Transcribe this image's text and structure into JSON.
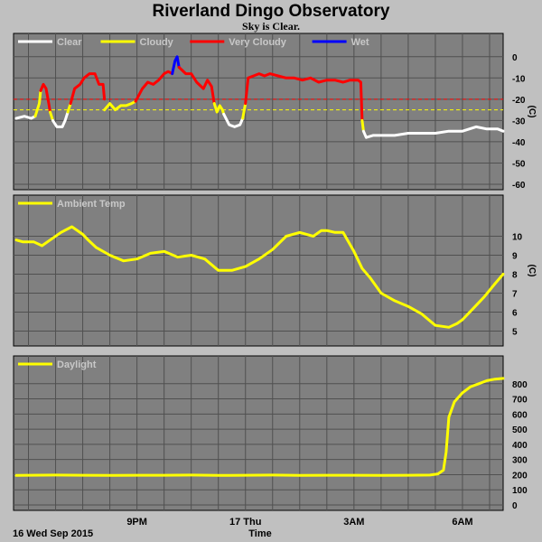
{
  "title": "Riverland Dingo Observatory",
  "subtitle": "Sky is Clear.",
  "chart_data": [
    {
      "type": "line",
      "ylabel": "(C)",
      "ylim": [
        -60,
        5
      ],
      "yticks": [
        0,
        -10,
        -20,
        -30,
        -40,
        -50,
        -60
      ],
      "legend": [
        {
          "name": "Clear",
          "color": "#ffffff"
        },
        {
          "name": "Cloudy",
          "color": "#ffff00"
        },
        {
          "name": "Very Cloudy",
          "color": "#ff0000"
        },
        {
          "name": "Wet",
          "color": "#0000ff"
        }
      ],
      "thresholds": [
        {
          "value": -20,
          "color": "#ff0000"
        },
        {
          "value": -25,
          "color": "#ffff00"
        }
      ],
      "segments": [
        {
          "series": "Clear",
          "x": [
            -4.45,
            -4.15,
            -3.9,
            -3.75
          ],
          "y": [
            -29,
            -28,
            -29,
            -28
          ]
        },
        {
          "series": "Cloudy",
          "x": [
            -3.75,
            -3.6,
            -3.55
          ],
          "y": [
            -28,
            -22,
            -16
          ]
        },
        {
          "series": "Very Cloudy",
          "x": [
            -3.55,
            -3.45,
            -3.35,
            -3.25,
            -3.2
          ],
          "y": [
            -16,
            -13,
            -15,
            -22,
            -26
          ]
        },
        {
          "series": "Cloudy",
          "x": [
            -3.2,
            -3.1
          ],
          "y": [
            -26,
            -30
          ]
        },
        {
          "series": "Clear",
          "x": [
            -3.1,
            -2.95,
            -2.75,
            -2.65,
            -2.55
          ],
          "y": [
            -30,
            -33,
            -33,
            -30,
            -26
          ]
        },
        {
          "series": "Cloudy",
          "x": [
            -2.55,
            -2.45
          ],
          "y": [
            -26,
            -22
          ]
        },
        {
          "series": "Very Cloudy",
          "x": [
            -2.45,
            -2.3,
            -2.1,
            -1.95,
            -1.75,
            -1.55,
            -1.4,
            -1.25,
            -1.2
          ],
          "y": [
            -22,
            -15,
            -13,
            -10,
            -8,
            -8,
            -13,
            -13,
            -20
          ]
        },
        {
          "series": "Cloudy",
          "x": [
            -1.2,
            -1.0,
            -0.8,
            -0.6,
            -0.4,
            -0.2,
            -0.05
          ],
          "y": [
            -25,
            -22,
            -25,
            -23,
            -23,
            -22,
            -21
          ]
        },
        {
          "series": "Very Cloudy",
          "x": [
            -0.05,
            0.2,
            0.4,
            0.6,
            0.8,
            1.0,
            1.15,
            1.3
          ],
          "y": [
            -21,
            -15,
            -12,
            -13,
            -11,
            -8,
            -7,
            -8
          ]
        },
        {
          "series": "Wet",
          "x": [
            1.3,
            1.4,
            1.48,
            1.55
          ],
          "y": [
            -8,
            -2,
            0,
            -5
          ]
        },
        {
          "series": "Very Cloudy",
          "x": [
            1.55,
            1.8,
            2.0,
            2.2,
            2.45,
            2.6,
            2.75,
            2.85
          ],
          "y": [
            -5,
            -8,
            -8,
            -12,
            -15,
            -11,
            -14,
            -22
          ]
        },
        {
          "series": "Cloudy",
          "x": [
            2.85,
            2.95,
            3.05,
            3.15,
            3.2
          ],
          "y": [
            -22,
            -26,
            -23,
            -25,
            -27
          ]
        },
        {
          "series": "Clear",
          "x": [
            3.2,
            3.4,
            3.6,
            3.8,
            3.9
          ],
          "y": [
            -27,
            -32,
            -33,
            -32,
            -29
          ]
        },
        {
          "series": "Cloudy",
          "x": [
            3.9,
            4.0
          ],
          "y": [
            -29,
            -22
          ]
        },
        {
          "series": "Very Cloudy",
          "x": [
            4.0,
            4.1,
            4.3,
            4.5,
            4.7,
            4.9,
            5.2,
            5.5,
            5.8,
            6.1,
            6.4,
            6.7,
            7.0,
            7.3,
            7.6,
            7.85,
            8.05,
            8.15,
            8.25,
            8.3
          ],
          "y": [
            -22,
            -10,
            -9,
            -8,
            -9,
            -8,
            -9,
            -10,
            -10,
            -11,
            -10,
            -12,
            -11,
            -11,
            -12,
            -11,
            -11,
            -11,
            -12,
            -30
          ]
        },
        {
          "series": "Cloudy",
          "x": [
            8.3,
            8.35
          ],
          "y": [
            -30,
            -35
          ]
        },
        {
          "series": "Clear",
          "x": [
            8.35,
            8.45,
            8.7,
            9.0,
            9.5,
            10.0,
            10.5,
            11.0,
            11.5,
            12.0,
            12.5,
            12.9,
            13.3,
            13.5
          ],
          "y": [
            -35,
            -38,
            -37,
            -37,
            -37,
            -36,
            -36,
            -36,
            -35,
            -35,
            -33,
            -34,
            -34,
            -35
          ]
        }
      ]
    },
    {
      "type": "line",
      "ylabel": "(C)",
      "ylim": [
        4.5,
        11.5
      ],
      "yticks": [
        10,
        9,
        8,
        7,
        6,
        5
      ],
      "series": [
        {
          "name": "Ambient Temp",
          "color": "#ffff00",
          "x": [
            -4.45,
            -4.2,
            -3.8,
            -3.5,
            -3.2,
            -2.8,
            -2.4,
            -2.0,
            -1.8,
            -1.5,
            -1.0,
            -0.5,
            0.0,
            0.5,
            1.0,
            1.5,
            2.0,
            2.5,
            3.0,
            3.5,
            4.0,
            4.5,
            5.0,
            5.5,
            6.0,
            6.5,
            6.8,
            7.0,
            7.3,
            7.6,
            8.0,
            8.3,
            8.6,
            9.0,
            9.5,
            10.0,
            10.5,
            11.0,
            11.5,
            11.8,
            12.0,
            12.4,
            12.8,
            13.2,
            13.5
          ],
          "y": [
            9.8,
            9.7,
            9.7,
            9.5,
            9.8,
            10.2,
            10.5,
            10.1,
            9.8,
            9.4,
            9.0,
            8.7,
            8.8,
            9.1,
            9.2,
            8.9,
            9.0,
            8.8,
            8.2,
            8.2,
            8.4,
            8.8,
            9.3,
            10.0,
            10.2,
            10.0,
            10.3,
            10.3,
            10.2,
            10.2,
            9.2,
            8.3,
            7.8,
            7.0,
            6.6,
            6.3,
            5.9,
            5.3,
            5.2,
            5.4,
            5.6,
            6.2,
            6.8,
            7.5,
            8.0
          ]
        }
      ]
    },
    {
      "type": "line",
      "ylim": [
        0,
        900
      ],
      "yticks": [
        800,
        700,
        600,
        500,
        400,
        300,
        200,
        100,
        0
      ],
      "series": [
        {
          "name": "Daylight",
          "color": "#ffff00",
          "x": [
            -4.45,
            -3.0,
            -2.0,
            -1.0,
            0.0,
            1.0,
            2.0,
            3.0,
            4.0,
            5.0,
            6.0,
            7.0,
            8.0,
            9.0,
            10.0,
            10.8,
            11.1,
            11.3,
            11.4,
            11.5,
            11.7,
            12.0,
            12.3,
            12.6,
            12.9,
            13.2,
            13.5
          ],
          "y": [
            195,
            197,
            196,
            195,
            196,
            196,
            197,
            195,
            196,
            197,
            195,
            196,
            196,
            195,
            196,
            197,
            205,
            230,
            350,
            580,
            680,
            740,
            780,
            800,
            820,
            830,
            835
          ]
        }
      ]
    }
  ],
  "x_axis": {
    "label": "Time",
    "start_label": "16 Wed Sep 2015",
    "xlim": [
      -4.55,
      13.5
    ],
    "ticks": [
      {
        "x": 0,
        "label": "9PM"
      },
      {
        "x": 4,
        "label": "17 Thu"
      },
      {
        "x": 8,
        "label": "3AM"
      },
      {
        "x": 12,
        "label": "6AM"
      }
    ]
  },
  "colors": {
    "plot_background": "#808080",
    "grid": "#505050",
    "page_background": "#c0c0c0"
  }
}
